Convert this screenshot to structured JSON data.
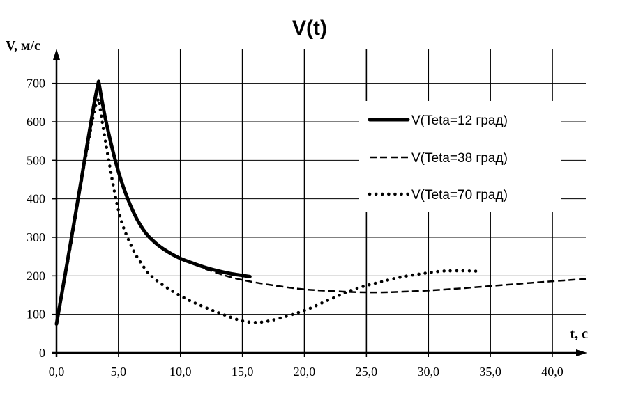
{
  "chart_data": {
    "type": "line",
    "title": "V(t)",
    "ylabel": "V, м/с",
    "xlabel": "t, с",
    "xlim": [
      0,
      42.7
    ],
    "ylim": [
      0,
      750
    ],
    "x_ticks": [
      "0,0",
      "5,0",
      "10,0",
      "15,0",
      "20,0",
      "25,0",
      "30,0",
      "35,0",
      "40,0"
    ],
    "y_ticks": [
      "0",
      "100",
      "200",
      "300",
      "400",
      "500",
      "600",
      "700"
    ],
    "grid": {
      "x_major": true,
      "y_major": true
    },
    "legend_position": "top-right",
    "series": [
      {
        "name": "V(Teta=12 град)",
        "style": "solid-thick",
        "x": [
          0,
          1,
          2,
          3,
          3.4,
          4,
          5,
          6,
          7,
          8,
          9,
          10,
          11,
          12,
          13,
          14,
          15,
          15.6
        ],
        "y": [
          75,
          260,
          450,
          640,
          705,
          600,
          470,
          380,
          320,
          285,
          262,
          245,
          233,
          222,
          213,
          206,
          201,
          198
        ]
      },
      {
        "name": "V(Teta=38 град)",
        "style": "dashed",
        "x": [
          12,
          14,
          16,
          18,
          20,
          22,
          24,
          26,
          28,
          30,
          32,
          34,
          36,
          38,
          40,
          42.7
        ],
        "y": [
          218,
          197,
          183,
          173,
          165,
          161,
          158,
          157,
          159,
          162,
          166,
          171,
          176,
          181,
          186,
          192
        ]
      },
      {
        "name": "V(Teta=70 град)",
        "style": "dotted",
        "x": [
          0,
          1,
          2,
          3,
          3.4,
          4,
          5,
          6,
          7,
          8,
          10,
          12,
          14,
          15,
          16,
          17,
          18,
          20,
          22,
          24,
          26,
          28,
          30,
          31,
          32,
          33,
          34
        ],
        "y": [
          75,
          255,
          445,
          620,
          660,
          540,
          370,
          280,
          225,
          190,
          148,
          118,
          93,
          83,
          79,
          82,
          90,
          110,
          138,
          165,
          183,
          198,
          208,
          212,
          213,
          213,
          212
        ]
      }
    ]
  }
}
